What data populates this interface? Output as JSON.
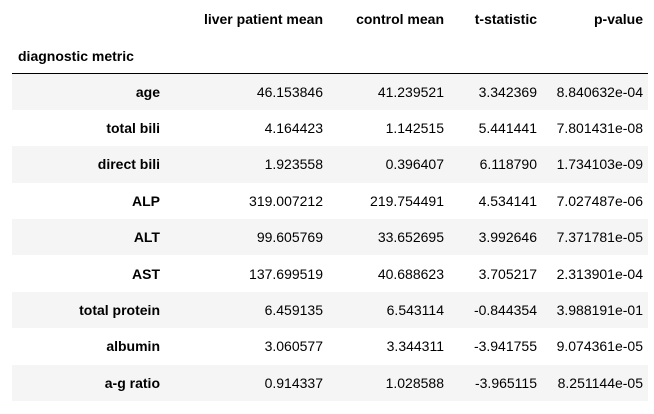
{
  "table": {
    "index_name": "diagnostic metric",
    "columns": [
      "liver patient mean",
      "control mean",
      "t-statistic",
      "p-value"
    ],
    "rows": [
      {
        "label": "age",
        "values": [
          "46.153846",
          "41.239521",
          "3.342369",
          "8.840632e-04"
        ]
      },
      {
        "label": "total bili",
        "values": [
          "4.164423",
          "1.142515",
          "5.441441",
          "7.801431e-08"
        ]
      },
      {
        "label": "direct bili",
        "values": [
          "1.923558",
          "0.396407",
          "6.118790",
          "1.734103e-09"
        ]
      },
      {
        "label": "ALP",
        "values": [
          "319.007212",
          "219.754491",
          "4.534141",
          "7.027487e-06"
        ]
      },
      {
        "label": "ALT",
        "values": [
          "99.605769",
          "33.652695",
          "3.992646",
          "7.371781e-05"
        ]
      },
      {
        "label": "AST",
        "values": [
          "137.699519",
          "40.688623",
          "3.705217",
          "2.313901e-04"
        ]
      },
      {
        "label": "total protein",
        "values": [
          "6.459135",
          "6.543114",
          "-0.844354",
          "3.988191e-01"
        ]
      },
      {
        "label": "albumin",
        "values": [
          "3.060577",
          "3.344311",
          "-3.941755",
          "9.074361e-05"
        ]
      },
      {
        "label": "a-g ratio",
        "values": [
          "0.914337",
          "1.028588",
          "-3.965115",
          "8.251144e-05"
        ]
      }
    ]
  },
  "colors": {
    "stripe": "#f5f5f5",
    "header_rule": "#000000",
    "text": "#000000"
  }
}
